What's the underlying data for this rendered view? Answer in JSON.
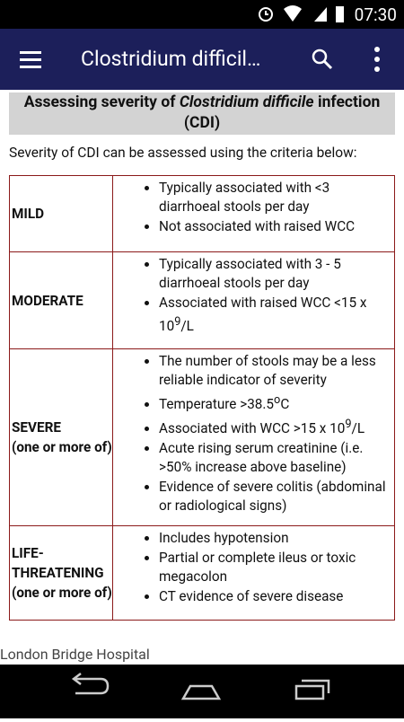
{
  "status_bar": {
    "time": "07:30"
  },
  "app_bar": {
    "title": "Clostridium difficil…"
  },
  "heading": {
    "parts": [
      "Assessing severity of ",
      "Clostridium difficile",
      " infection (CDI)"
    ]
  },
  "intro": "Severity of CDI can be assessed using the criteria below:",
  "table": {
    "rows": [
      {
        "label": [
          "MILD"
        ],
        "items": [
          [
            "Typically associated with <3 diarrhoeal stools per day"
          ],
          [
            "Not associated with raised WCC"
          ]
        ]
      },
      {
        "label": [
          "MODERATE"
        ],
        "items": [
          [
            "Typically associated with 3 - 5 diarrhoeal stools per day"
          ],
          [
            "Associated with raised WCC <15 x 10",
            "9",
            "/L"
          ]
        ]
      },
      {
        "label": [
          "SEVERE",
          "(one or more of)"
        ],
        "items": [
          [
            "The number of stools may be a less reliable indicator of severity"
          ],
          [
            "Temperature >38.5",
            "o",
            "C"
          ],
          [
            "Associated with WCC >15 x 10",
            "9",
            "/L"
          ],
          [
            "Acute rising serum creatinine (i.e. >50% increase above baseline)"
          ],
          [
            "Evidence of severe colitis (abdominal or radiological signs)"
          ]
        ]
      },
      {
        "label": [
          "LIFE-THREATENING",
          "(one or more of)"
        ],
        "items": [
          [
            "Includes hypotension"
          ],
          [
            "Partial or complete ileus or toxic megacolon"
          ],
          [
            "CT evidence of severe disease"
          ]
        ]
      }
    ]
  },
  "footer": "London Bridge Hospital"
}
